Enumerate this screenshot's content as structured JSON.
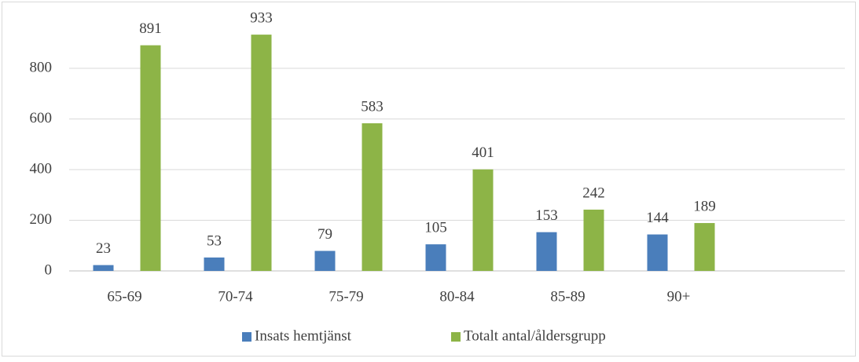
{
  "chart_data": {
    "type": "bar",
    "categories": [
      "65-69",
      "70-74",
      "75-79",
      "80-84",
      "85-89",
      "90+",
      null
    ],
    "series": [
      {
        "name": "Insats hemtjänst",
        "color": "#4a7ebb",
        "values": [
          23,
          53,
          79,
          105,
          153,
          144,
          null
        ]
      },
      {
        "name": "Totalt antal/åldersgrupp",
        "color": "#8db447",
        "values": [
          891,
          933,
          583,
          401,
          242,
          189,
          null
        ]
      }
    ],
    "ylim": [
      0,
      1000
    ],
    "yticks": [
      0,
      200,
      400,
      600,
      800
    ],
    "grid": true,
    "legend": "bottom"
  }
}
